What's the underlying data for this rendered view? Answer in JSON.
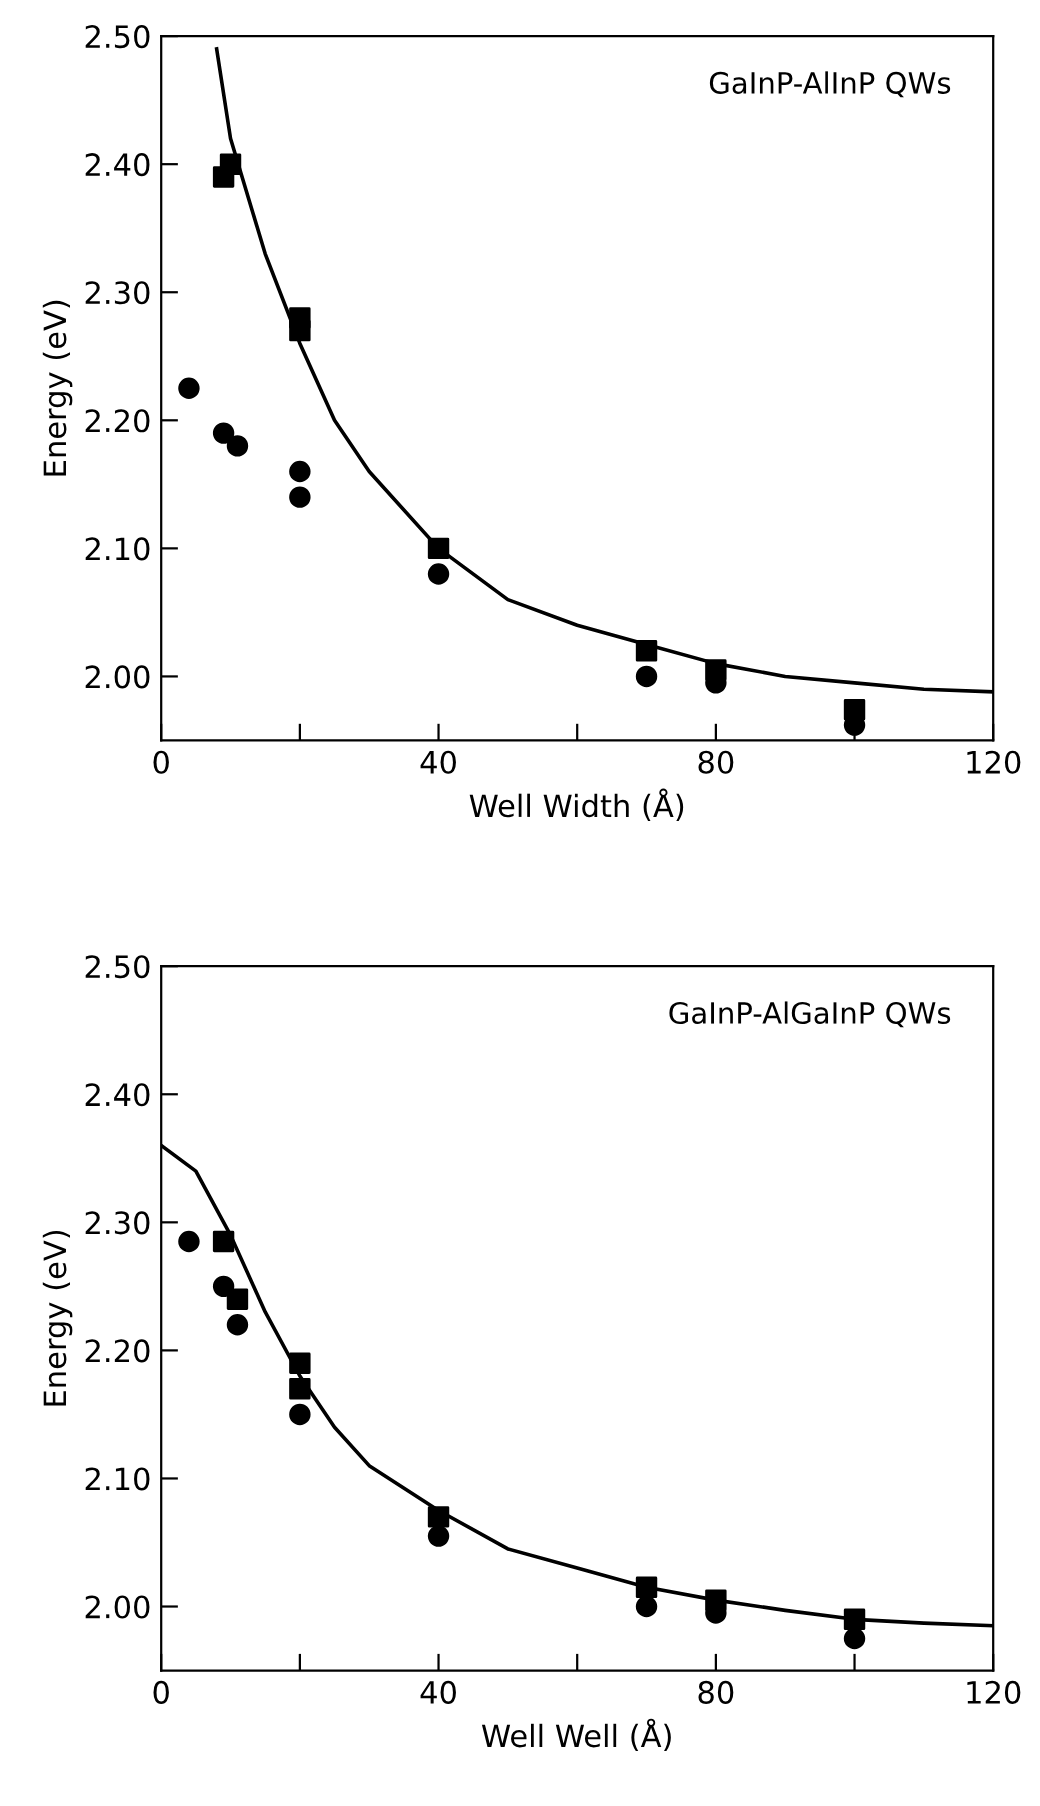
{
  "chart_data": [
    {
      "type": "scatter",
      "xlabel": "Well Width (Å)",
      "ylabel": "Energy (eV)",
      "annotations": [
        "GaInP-AlInP QWs"
      ],
      "xlim": [
        0,
        120
      ],
      "ylim": [
        1.95,
        2.5
      ],
      "xticks": [
        0,
        {
          "value": 20,
          "label": null
        },
        40,
        {
          "value": 60,
          "label": null
        },
        80,
        {
          "value": 100,
          "label": null
        },
        120
      ],
      "yticks": [
        {
          "value": 2.0,
          "label": "2.00"
        },
        {
          "value": 2.1,
          "label": "2.10"
        },
        {
          "value": 2.2,
          "label": "2.20"
        },
        {
          "value": 2.3,
          "label": "2.30"
        },
        {
          "value": 2.4,
          "label": "2.40"
        },
        {
          "value": 2.5,
          "label": "2.50"
        }
      ],
      "grid": false,
      "legend": false,
      "series": [
        {
          "marker": "square",
          "color": "#000000",
          "x": [
            9,
            10,
            20,
            20,
            40,
            70,
            80,
            100
          ],
          "values": [
            2.39,
            2.4,
            2.28,
            2.27,
            2.1,
            2.02,
            2.005,
            1.974
          ]
        },
        {
          "marker": "circle",
          "color": "#000000",
          "x": [
            4,
            9,
            11,
            20,
            20,
            40,
            70,
            80,
            100
          ],
          "values": [
            2.225,
            2.19,
            2.18,
            2.16,
            2.14,
            2.08,
            2.0,
            1.995,
            1.962
          ]
        },
        {
          "type": "line",
          "marker": "none",
          "line_style": "solid",
          "color": "#000000",
          "x": [
            8,
            10,
            15,
            20,
            25,
            30,
            40,
            50,
            60,
            70,
            80,
            90,
            100,
            110,
            120
          ],
          "values": [
            2.49,
            2.42,
            2.33,
            2.26,
            2.2,
            2.16,
            2.1,
            2.06,
            2.04,
            2.025,
            2.01,
            2.0,
            1.995,
            1.99,
            1.988
          ]
        }
      ]
    },
    {
      "type": "scatter",
      "xlabel": "Well Well (Å)",
      "ylabel": "Energy (eV)",
      "annotations": [
        "GaInP-AlGaInP QWs"
      ],
      "xlim": [
        0,
        120
      ],
      "ylim": [
        1.95,
        2.5
      ],
      "xticks": [
        0,
        {
          "value": 20,
          "label": null
        },
        40,
        {
          "value": 60,
          "label": null
        },
        80,
        {
          "value": 100,
          "label": null
        },
        120
      ],
      "yticks": [
        {
          "value": 2.0,
          "label": "2.00"
        },
        {
          "value": 2.1,
          "label": "2.10"
        },
        {
          "value": 2.2,
          "label": "2.20"
        },
        {
          "value": 2.3,
          "label": "2.30"
        },
        {
          "value": 2.4,
          "label": "2.40"
        },
        {
          "value": 2.5,
          "label": "2.50"
        }
      ],
      "grid": false,
      "legend": false,
      "series": [
        {
          "marker": "square",
          "color": "#000000",
          "x": [
            9,
            11,
            20,
            20,
            40,
            70,
            80,
            100
          ],
          "values": [
            2.285,
            2.24,
            2.19,
            2.17,
            2.07,
            2.015,
            2.005,
            1.99
          ]
        },
        {
          "marker": "circle",
          "color": "#000000",
          "x": [
            4,
            9,
            11,
            20,
            40,
            70,
            80,
            100
          ],
          "values": [
            2.285,
            2.25,
            2.22,
            2.15,
            2.055,
            2.0,
            1.995,
            1.975
          ]
        },
        {
          "type": "line",
          "marker": "none",
          "line_style": "solid",
          "color": "#000000",
          "x": [
            0,
            5,
            10,
            15,
            20,
            25,
            30,
            40,
            50,
            60,
            70,
            80,
            90,
            100,
            110,
            120
          ],
          "values": [
            2.36,
            2.34,
            2.29,
            2.23,
            2.18,
            2.14,
            2.11,
            2.075,
            2.045,
            2.03,
            2.015,
            2.005,
            1.997,
            1.99,
            1.987,
            1.985
          ]
        }
      ]
    }
  ]
}
